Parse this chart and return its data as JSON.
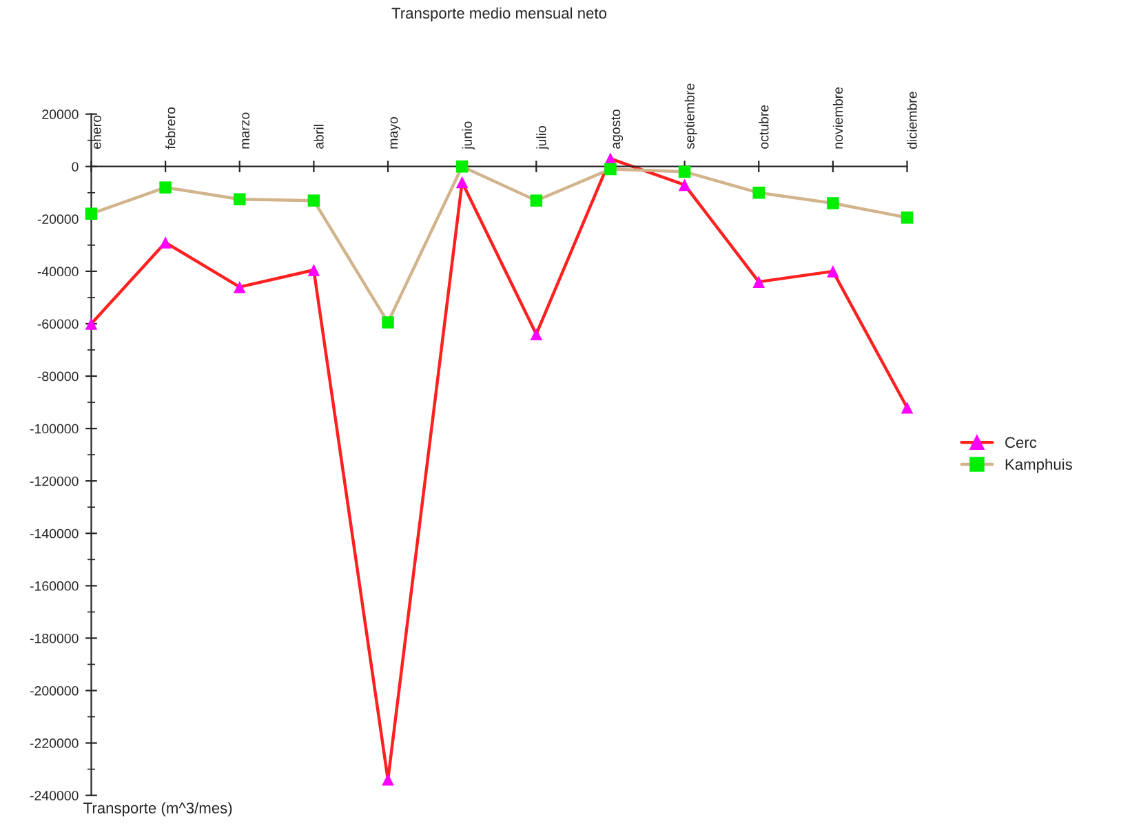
{
  "chart_data": {
    "type": "line",
    "title": "Transporte medio mensual neto",
    "annotations": [
      "Transporte (m^3/mes)"
    ],
    "categories": [
      "enero",
      "febrero",
      "marzo",
      "abril",
      "mayo",
      "junio",
      "julio",
      "agosto",
      "septiembre",
      "octubre",
      "noviembre",
      "diciembre"
    ],
    "series": [
      {
        "name": "Cerc",
        "color": "#ff2020",
        "marker": "triangle",
        "colors": [
          "#ff00ff",
          "#ff00ff",
          "#ff00ff",
          "#ff00ff",
          "#ff00ff",
          "#ff00ff",
          "#ff00ff",
          "#ff00ff",
          "#ff00ff",
          "#ff00ff",
          "#ff00ff",
          "#ff00ff"
        ],
        "values": [
          -60000,
          -29000,
          -46000,
          -39500,
          -234000,
          -6000,
          -64000,
          3000,
          -7000,
          -44000,
          -40000,
          -92000
        ]
      },
      {
        "name": "Kamphuis",
        "color": "#d2b48c",
        "marker": "square",
        "colors": [
          "#00ee00",
          "#00ee00",
          "#00ee00",
          "#00ee00",
          "#00ee00",
          "#00ee00",
          "#00ee00",
          "#00ee00",
          "#00ee00",
          "#00ee00",
          "#00ee00",
          "#00ee00"
        ],
        "values": [
          -18000,
          -8000,
          -12500,
          -13000,
          -59500,
          0,
          -13000,
          -1000,
          -2000,
          -10000,
          -14000,
          -19500
        ]
      }
    ],
    "ylim": [
      -240000,
      20000
    ],
    "yticks": [
      -240000,
      -220000,
      -200000,
      -180000,
      -160000,
      -140000,
      -120000,
      -100000,
      -80000,
      -60000,
      -40000,
      -20000,
      0,
      20000
    ],
    "grid": false,
    "legend": "right",
    "line_style": "solid"
  }
}
